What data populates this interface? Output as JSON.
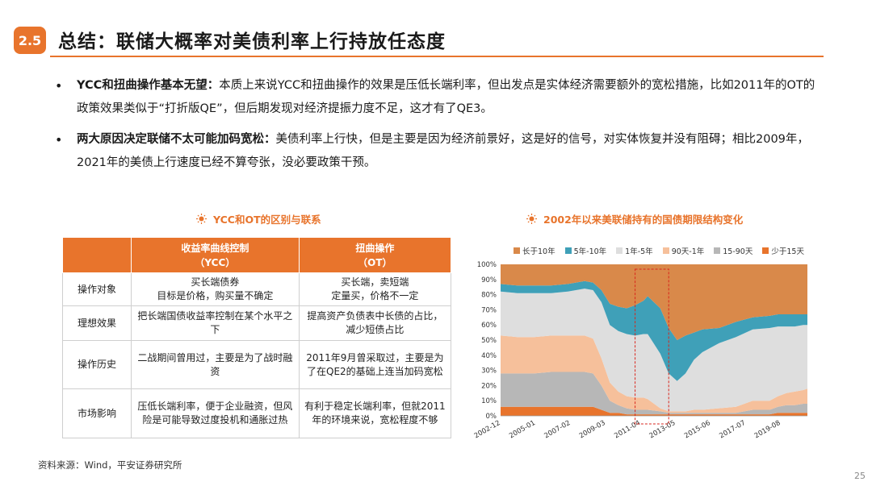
{
  "section_number": "2.5",
  "title": "总结：联储大概率对美债利率上行持放任态度",
  "bullets": [
    {
      "lead": "YCC和扭曲操作基本无望：",
      "text": "本质上来说YCC和扭曲操作的效果是压低长端利率，但出发点是实体经济需要额外的宽松措施，比如2011年的OT的政策效果类似于“打折版QE”，但后期发现对经济提振力度不足，这才有了QE3。"
    },
    {
      "lead": "两大原因决定联储不太可能加码宽松：",
      "text": "美债利率上行快，但是主要是因为经济前景好，这是好的信号，对实体恢复并没有阻碍；相比2009年，2021年的美债上行速度已经不算夸张，没必要政策干预。"
    }
  ],
  "table_title": "YCC和OT的区别与联系",
  "table": {
    "headers": [
      "",
      "收益率曲线控制\n（YCC）",
      "扭曲操作\n（OT）"
    ],
    "rows": [
      [
        "操作对象",
        "买长端债券\n目标是价格，购买量不确定",
        "买长端，卖短端\n定量买，价格不一定"
      ],
      [
        "理想效果",
        "把长端国债收益率控制在某个水平之下",
        "提高资产负债表中长债的占比，减少短债占比"
      ],
      [
        "操作历史",
        "二战期间曾用过，主要是为了战时融资",
        "2011年9月曾采取过，主要是为了在QE2的基础上连当加码宽松"
      ],
      [
        "市场影响",
        "压低长端利率，便于企业融资，但风险是可能导致过度投机和通胀过热",
        "有利于稳定长端利率，但就2011年的环境来说，宽松程度不够"
      ]
    ]
  },
  "chart_title": "2002年以来美联储持有的国债期限结构变化",
  "source": "资料来源：Wind，平安证券研究所",
  "page_number": "25",
  "chart_data": {
    "type": "area",
    "stacked": true,
    "x": [
      "2002-12",
      "2003-12",
      "2004-12",
      "2005-12",
      "2006-12",
      "2007-12",
      "2008-06",
      "2008-12",
      "2009-06",
      "2009-12",
      "2010-06",
      "2010-12",
      "2011-06",
      "2011-09",
      "2012-06",
      "2012-12",
      "2013-06",
      "2013-12",
      "2014-06",
      "2014-12",
      "2015-12",
      "2016-12",
      "2017-12",
      "2018-12",
      "2019-06",
      "2019-12",
      "2020-06",
      "2020-12",
      "2021-03"
    ],
    "x_tick_labels": [
      "2002-12",
      "2005-01",
      "2007-02",
      "2009-03",
      "2011-04",
      "2013-05",
      "2015-06",
      "2017-07",
      "2019-08"
    ],
    "ylim": [
      0,
      100
    ],
    "y_tick_labels": [
      "0%",
      "10%",
      "20%",
      "30%",
      "40%",
      "50%",
      "60%",
      "70%",
      "80%",
      "90%",
      "100%"
    ],
    "legend_position": "top",
    "series": [
      {
        "name": "少于15天",
        "color": "#e8742c",
        "values": [
          6,
          6,
          6,
          6,
          6,
          6,
          6,
          4,
          2,
          2,
          1,
          1,
          1,
          1,
          1,
          1,
          1,
          1,
          1,
          1,
          1,
          1,
          1,
          1,
          2,
          2,
          2,
          2,
          2
        ]
      },
      {
        "name": "15-90天",
        "color": "#b7b7b7",
        "values": [
          22,
          22,
          22,
          23,
          23,
          23,
          22,
          16,
          8,
          5,
          4,
          3,
          3,
          3,
          2,
          1,
          1,
          1,
          1,
          1,
          1,
          1,
          3,
          3,
          4,
          5,
          5,
          6,
          6
        ]
      },
      {
        "name": "90天-1年",
        "color": "#f6c09b",
        "values": [
          25,
          24,
          24,
          24,
          24,
          24,
          23,
          18,
          12,
          9,
          8,
          8,
          8,
          7,
          2,
          1,
          1,
          1,
          2,
          2,
          3,
          4,
          6,
          6,
          7,
          8,
          9,
          9,
          10
        ]
      },
      {
        "name": "1年-5年",
        "color": "#dedede",
        "values": [
          29,
          29,
          29,
          28,
          29,
          31,
          32,
          37,
          38,
          40,
          41,
          41,
          42,
          43,
          36,
          25,
          20,
          25,
          33,
          38,
          43,
          46,
          47,
          48,
          46,
          44,
          43,
          43,
          42
        ]
      },
      {
        "name": "5年-10年",
        "color": "#3fa0b8",
        "values": [
          5,
          5,
          5,
          5,
          5,
          5,
          5,
          8,
          14,
          16,
          17,
          20,
          22,
          25,
          30,
          30,
          27,
          25,
          18,
          15,
          10,
          10,
          8,
          8,
          8,
          8,
          8,
          7,
          7
        ]
      },
      {
        "name": "长于10年",
        "color": "#d9894a",
        "values": [
          13,
          14,
          14,
          14,
          13,
          11,
          12,
          17,
          26,
          28,
          29,
          27,
          24,
          21,
          29,
          42,
          50,
          47,
          45,
          43,
          42,
          38,
          35,
          34,
          33,
          33,
          33,
          33,
          33
        ]
      }
    ],
    "highlight_box": {
      "x_start": "2010-12",
      "x_end": "2012-12"
    }
  }
}
